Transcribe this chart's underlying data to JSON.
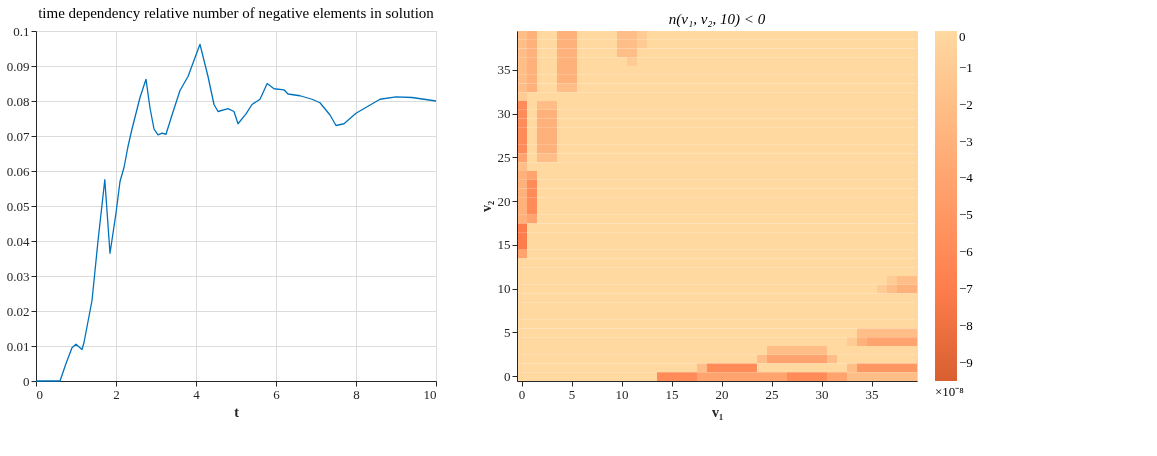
{
  "chart_data": [
    {
      "type": "line",
      "title": "time dependency relative number of negative elements in solution",
      "xlabel": "t",
      "x": [
        0,
        0.6,
        0.75,
        0.9,
        1.0,
        1.1,
        1.15,
        1.2,
        1.4,
        1.55,
        1.72,
        1.85,
        2.0,
        2.1,
        2.2,
        2.3,
        2.4,
        2.6,
        2.75,
        2.85,
        2.95,
        3.05,
        3.15,
        3.25,
        3.4,
        3.6,
        3.8,
        4.1,
        4.3,
        4.45,
        4.55,
        4.8,
        4.95,
        5.05,
        5.25,
        5.4,
        5.6,
        5.78,
        5.95,
        6.2,
        6.3,
        6.6,
        6.9,
        7.1,
        7.35,
        7.5,
        7.7,
        8.0,
        8.3,
        8.6,
        9.0,
        9.4,
        9.7,
        10
      ],
      "series": [
        {
          "color": "#0072bd",
          "values": [
            0,
            0,
            0.005,
            0.0095,
            0.0105,
            0.0095,
            0.009,
            0.011,
            0.023,
            0.04,
            0.0575,
            0.0365,
            0.048,
            0.057,
            0.061,
            0.067,
            0.072,
            0.081,
            0.0862,
            0.078,
            0.072,
            0.0703,
            0.0708,
            0.0705,
            0.076,
            0.083,
            0.087,
            0.0962,
            0.087,
            0.079,
            0.077,
            0.0778,
            0.077,
            0.0735,
            0.0763,
            0.079,
            0.0805,
            0.085,
            0.0835,
            0.0832,
            0.082,
            0.0815,
            0.0805,
            0.0795,
            0.076,
            0.073,
            0.0735,
            0.0765,
            0.0785,
            0.0805,
            0.0812,
            0.081,
            0.0805,
            0.08
          ]
        }
      ],
      "xlim": [
        0,
        10
      ],
      "xticks": [
        0,
        2,
        4,
        6,
        8,
        10
      ],
      "ylim": [
        0,
        0.1
      ],
      "yticks": [
        0,
        0.01,
        0.02,
        0.03,
        0.04,
        0.05,
        0.06,
        0.07,
        0.08,
        0.09,
        0.1
      ],
      "grid": true,
      "marker": "none",
      "line_style": "solid"
    },
    {
      "type": "heatmap",
      "title": "n(v₁, v₂, 10) < 0",
      "xlabel": "v₁",
      "ylabel": "v₂",
      "clabel": "×10⁻⁸",
      "categories": [
        "0",
        null,
        null,
        null,
        null,
        "5",
        null,
        null,
        null,
        null,
        "10",
        null,
        null,
        null,
        null,
        "15",
        null,
        null,
        null,
        null,
        "20",
        null,
        null,
        null,
        null,
        "25",
        null,
        null,
        null,
        null,
        "30",
        null,
        null,
        null,
        null,
        "35",
        null,
        null,
        null,
        null
      ],
      "y_categories": [
        null,
        null,
        null,
        null,
        "35",
        null,
        null,
        null,
        null,
        "30",
        null,
        null,
        null,
        null,
        "25",
        null,
        null,
        null,
        null,
        "20",
        null,
        null,
        null,
        null,
        "15",
        null,
        null,
        null,
        null,
        "10",
        null,
        null,
        null,
        null,
        "5",
        null,
        null,
        null,
        null,
        "0"
      ],
      "clim": [
        -9.5,
        0
      ],
      "cticks": [
        0,
        -1,
        -2,
        -3,
        -4,
        -5,
        -6,
        -7,
        -8,
        -9
      ],
      "cells": [
        [
          -2,
          -3,
          0,
          0,
          -3,
          -3,
          0,
          0,
          0,
          0,
          -2,
          -2,
          -1,
          0,
          0,
          0,
          0,
          0,
          0,
          0,
          0,
          0,
          0,
          0,
          0,
          0,
          0,
          0,
          0,
          0,
          0,
          0,
          0,
          0,
          0,
          0,
          0,
          0,
          0,
          0
        ],
        [
          -2,
          -3,
          0,
          0,
          -3,
          -3,
          0,
          0,
          0,
          0,
          -2,
          -2,
          -1,
          0,
          0,
          0,
          0,
          0,
          0,
          0,
          0,
          0,
          0,
          0,
          0,
          0,
          0,
          0,
          0,
          0,
          0,
          0,
          0,
          0,
          0,
          0,
          0,
          0,
          0,
          0
        ],
        [
          -2,
          -3,
          0,
          0,
          -3,
          -3,
          0,
          0,
          0,
          0,
          -2,
          -2,
          0,
          0,
          0,
          0,
          0,
          0,
          0,
          0,
          0,
          0,
          0,
          0,
          0,
          0,
          0,
          0,
          0,
          0,
          0,
          0,
          0,
          0,
          0,
          0,
          0,
          0,
          0,
          0
        ],
        [
          -2,
          -3,
          0,
          0,
          -3,
          -3,
          0,
          0,
          0,
          0,
          0,
          -1,
          0,
          0,
          0,
          0,
          0,
          0,
          0,
          0,
          0,
          0,
          0,
          0,
          0,
          0,
          0,
          0,
          0,
          0,
          0,
          0,
          0,
          0,
          0,
          0,
          0,
          0,
          0,
          0
        ],
        [
          -2,
          -3,
          0,
          0,
          -3,
          -3,
          0,
          0,
          0,
          0,
          0,
          0,
          0,
          0,
          0,
          0,
          0,
          0,
          0,
          0,
          0,
          0,
          0,
          0,
          0,
          0,
          0,
          0,
          0,
          0,
          0,
          0,
          0,
          0,
          0,
          0,
          0,
          0,
          0,
          0
        ],
        [
          -2,
          -3,
          0,
          0,
          -3,
          -3,
          0,
          0,
          0,
          0,
          0,
          0,
          0,
          0,
          0,
          0,
          0,
          0,
          0,
          0,
          0,
          0,
          0,
          0,
          0,
          0,
          0,
          0,
          0,
          0,
          0,
          0,
          0,
          0,
          0,
          0,
          0,
          0,
          0,
          0
        ],
        [
          -2,
          -3,
          0,
          0,
          -2,
          -2,
          0,
          0,
          0,
          0,
          0,
          0,
          0,
          0,
          0,
          0,
          0,
          0,
          0,
          0,
          0,
          0,
          0,
          0,
          0,
          0,
          0,
          0,
          0,
          0,
          0,
          0,
          0,
          0,
          0,
          0,
          0,
          0,
          0,
          0
        ],
        [
          -1,
          0,
          0,
          0,
          0,
          0,
          0,
          0,
          0,
          0,
          0,
          0,
          0,
          0,
          0,
          0,
          0,
          0,
          0,
          0,
          0,
          0,
          0,
          0,
          0,
          0,
          0,
          0,
          0,
          0,
          0,
          0,
          0,
          0,
          0,
          0,
          0,
          0,
          0,
          0
        ],
        [
          -6,
          0,
          -2,
          -2,
          0,
          0,
          0,
          0,
          0,
          0,
          0,
          0,
          0,
          0,
          0,
          0,
          0,
          0,
          0,
          0,
          0,
          0,
          0,
          0,
          0,
          0,
          0,
          0,
          0,
          0,
          0,
          0,
          0,
          0,
          0,
          0,
          0,
          0,
          0,
          0
        ],
        [
          -6,
          0,
          -3,
          -3,
          0,
          0,
          0,
          0,
          0,
          0,
          0,
          0,
          0,
          0,
          0,
          0,
          0,
          0,
          0,
          0,
          0,
          0,
          0,
          0,
          0,
          0,
          0,
          0,
          0,
          0,
          0,
          0,
          0,
          0,
          0,
          0,
          0,
          0,
          0,
          0
        ],
        [
          -6,
          0,
          -3,
          -3,
          0,
          0,
          0,
          0,
          0,
          0,
          0,
          0,
          0,
          0,
          0,
          0,
          0,
          0,
          0,
          0,
          0,
          0,
          0,
          0,
          0,
          0,
          0,
          0,
          0,
          0,
          0,
          0,
          0,
          0,
          0,
          0,
          0,
          0,
          0,
          0
        ],
        [
          -6,
          0,
          -3,
          -3,
          0,
          0,
          0,
          0,
          0,
          0,
          0,
          0,
          0,
          0,
          0,
          0,
          0,
          0,
          0,
          0,
          0,
          0,
          0,
          0,
          0,
          0,
          0,
          0,
          0,
          0,
          0,
          0,
          0,
          0,
          0,
          0,
          0,
          0,
          0,
          0
        ],
        [
          -6,
          0,
          -3,
          -3,
          0,
          0,
          0,
          0,
          0,
          0,
          0,
          0,
          0,
          0,
          0,
          0,
          0,
          0,
          0,
          0,
          0,
          0,
          0,
          0,
          0,
          0,
          0,
          0,
          0,
          0,
          0,
          0,
          0,
          0,
          0,
          0,
          0,
          0,
          0,
          0
        ],
        [
          -6,
          0,
          -3,
          -3,
          0,
          0,
          0,
          0,
          0,
          0,
          0,
          0,
          0,
          0,
          0,
          0,
          0,
          0,
          0,
          0,
          0,
          0,
          0,
          0,
          0,
          0,
          0,
          0,
          0,
          0,
          0,
          0,
          0,
          0,
          0,
          0,
          0,
          0,
          0,
          0
        ],
        [
          -4,
          0,
          -2,
          -2,
          0,
          0,
          0,
          0,
          0,
          0,
          0,
          0,
          0,
          0,
          0,
          0,
          0,
          0,
          0,
          0,
          0,
          0,
          0,
          0,
          0,
          0,
          0,
          0,
          0,
          0,
          0,
          0,
          0,
          0,
          0,
          0,
          0,
          0,
          0,
          0
        ],
        [
          -2,
          0,
          0,
          0,
          0,
          0,
          0,
          0,
          0,
          0,
          0,
          0,
          0,
          0,
          0,
          0,
          0,
          0,
          0,
          0,
          0,
          0,
          0,
          0,
          0,
          0,
          0,
          0,
          0,
          0,
          0,
          0,
          0,
          0,
          0,
          0,
          0,
          0,
          0,
          0
        ],
        [
          -3,
          -4,
          0,
          0,
          0,
          0,
          0,
          0,
          0,
          0,
          0,
          0,
          0,
          0,
          0,
          0,
          0,
          0,
          0,
          0,
          0,
          0,
          0,
          0,
          0,
          0,
          0,
          0,
          0,
          0,
          0,
          0,
          0,
          0,
          0,
          0,
          0,
          0,
          0,
          0
        ],
        [
          -3,
          -6,
          0,
          0,
          0,
          0,
          0,
          0,
          0,
          0,
          0,
          0,
          0,
          0,
          0,
          0,
          0,
          0,
          0,
          0,
          0,
          0,
          0,
          0,
          0,
          0,
          0,
          0,
          0,
          0,
          0,
          0,
          0,
          0,
          0,
          0,
          0,
          0,
          0,
          0
        ],
        [
          -3,
          -6,
          0,
          0,
          0,
          0,
          0,
          0,
          0,
          0,
          0,
          0,
          0,
          0,
          0,
          0,
          0,
          0,
          0,
          0,
          0,
          0,
          0,
          0,
          0,
          0,
          0,
          0,
          0,
          0,
          0,
          0,
          0,
          0,
          0,
          0,
          0,
          0,
          0,
          0
        ],
        [
          -3,
          -6,
          0,
          0,
          0,
          0,
          0,
          0,
          0,
          0,
          0,
          0,
          0,
          0,
          0,
          0,
          0,
          0,
          0,
          0,
          0,
          0,
          0,
          0,
          0,
          0,
          0,
          0,
          0,
          0,
          0,
          0,
          0,
          0,
          0,
          0,
          0,
          0,
          0,
          0
        ],
        [
          -3,
          -6,
          0,
          0,
          0,
          0,
          0,
          0,
          0,
          0,
          0,
          0,
          0,
          0,
          0,
          0,
          0,
          0,
          0,
          0,
          0,
          0,
          0,
          0,
          0,
          0,
          0,
          0,
          0,
          0,
          0,
          0,
          0,
          0,
          0,
          0,
          0,
          0,
          0,
          0
        ],
        [
          -3,
          -4,
          0,
          0,
          0,
          0,
          0,
          0,
          0,
          0,
          0,
          0,
          0,
          0,
          0,
          0,
          0,
          0,
          0,
          0,
          0,
          0,
          0,
          0,
          0,
          0,
          0,
          0,
          0,
          0,
          0,
          0,
          0,
          0,
          0,
          0,
          0,
          0,
          0,
          0
        ],
        [
          -7,
          0,
          0,
          0,
          0,
          0,
          0,
          0,
          0,
          0,
          0,
          0,
          0,
          0,
          0,
          0,
          0,
          0,
          0,
          0,
          0,
          0,
          0,
          0,
          0,
          0,
          0,
          0,
          0,
          0,
          0,
          0,
          0,
          0,
          0,
          0,
          0,
          0,
          0,
          0
        ],
        [
          -7,
          0,
          0,
          0,
          0,
          0,
          0,
          0,
          0,
          0,
          0,
          0,
          0,
          0,
          0,
          0,
          0,
          0,
          0,
          0,
          0,
          0,
          0,
          0,
          0,
          0,
          0,
          0,
          0,
          0,
          0,
          0,
          0,
          0,
          0,
          0,
          0,
          0,
          0,
          0
        ],
        [
          -7,
          0,
          0,
          0,
          0,
          0,
          0,
          0,
          0,
          0,
          0,
          0,
          0,
          0,
          0,
          0,
          0,
          0,
          0,
          0,
          0,
          0,
          0,
          0,
          0,
          0,
          0,
          0,
          0,
          0,
          0,
          0,
          0,
          0,
          0,
          0,
          0,
          0,
          0,
          0
        ],
        [
          -4,
          0,
          0,
          0,
          0,
          0,
          0,
          0,
          0,
          0,
          0,
          0,
          0,
          0,
          0,
          0,
          0,
          0,
          0,
          0,
          0,
          0,
          0,
          0,
          0,
          0,
          0,
          0,
          0,
          0,
          0,
          0,
          0,
          0,
          0,
          0,
          0,
          0,
          0,
          0
        ],
        [
          0,
          0,
          0,
          0,
          0,
          0,
          0,
          0,
          0,
          0,
          0,
          0,
          0,
          0,
          0,
          0,
          0,
          0,
          0,
          0,
          0,
          0,
          0,
          0,
          0,
          0,
          0,
          0,
          0,
          0,
          0,
          0,
          0,
          0,
          0,
          0,
          0,
          0,
          0,
          0
        ],
        [
          0,
          0,
          0,
          0,
          0,
          0,
          0,
          0,
          0,
          0,
          0,
          0,
          0,
          0,
          0,
          0,
          0,
          0,
          0,
          0,
          0,
          0,
          0,
          0,
          0,
          0,
          0,
          0,
          0,
          0,
          0,
          0,
          0,
          0,
          0,
          0,
          0,
          0,
          0,
          0
        ],
        [
          0,
          0,
          0,
          0,
          0,
          0,
          0,
          0,
          0,
          0,
          0,
          0,
          0,
          0,
          0,
          0,
          0,
          0,
          0,
          0,
          0,
          0,
          0,
          0,
          0,
          0,
          0,
          0,
          0,
          0,
          0,
          0,
          0,
          0,
          0,
          0,
          0,
          -1,
          -2,
          -2
        ],
        [
          0,
          0,
          0,
          0,
          0,
          0,
          0,
          0,
          0,
          0,
          0,
          0,
          0,
          0,
          0,
          0,
          0,
          0,
          0,
          0,
          0,
          0,
          0,
          0,
          0,
          0,
          0,
          0,
          0,
          0,
          0,
          0,
          0,
          0,
          0,
          0,
          -1,
          -2,
          -3,
          -3
        ],
        [
          0,
          0,
          0,
          0,
          0,
          0,
          0,
          0,
          0,
          0,
          0,
          0,
          0,
          0,
          0,
          0,
          0,
          0,
          0,
          0,
          0,
          0,
          0,
          0,
          0,
          0,
          0,
          0,
          0,
          0,
          0,
          0,
          0,
          0,
          0,
          0,
          0,
          0,
          0,
          0
        ],
        [
          0,
          0,
          0,
          0,
          0,
          0,
          0,
          0,
          0,
          0,
          0,
          0,
          0,
          0,
          0,
          0,
          0,
          0,
          0,
          0,
          0,
          0,
          0,
          0,
          0,
          0,
          0,
          0,
          0,
          0,
          0,
          0,
          0,
          0,
          0,
          0,
          0,
          0,
          0,
          0
        ],
        [
          0,
          0,
          0,
          0,
          0,
          0,
          0,
          0,
          0,
          0,
          0,
          0,
          0,
          0,
          0,
          0,
          0,
          0,
          0,
          0,
          0,
          0,
          0,
          0,
          0,
          0,
          0,
          0,
          0,
          0,
          0,
          0,
          0,
          0,
          0,
          0,
          0,
          0,
          0,
          0
        ],
        [
          0,
          0,
          0,
          0,
          0,
          0,
          0,
          0,
          0,
          0,
          0,
          0,
          0,
          0,
          0,
          0,
          0,
          0,
          0,
          0,
          0,
          0,
          0,
          0,
          0,
          0,
          0,
          0,
          0,
          0,
          0,
          0,
          0,
          0,
          0,
          0,
          0,
          0,
          0,
          0
        ],
        [
          0,
          0,
          0,
          0,
          0,
          0,
          0,
          0,
          0,
          0,
          0,
          0,
          0,
          0,
          0,
          0,
          0,
          0,
          0,
          0,
          0,
          0,
          0,
          0,
          0,
          0,
          0,
          0,
          0,
          0,
          0,
          0,
          0,
          0,
          -2,
          -2,
          -2,
          -2,
          -2,
          -2
        ],
        [
          0,
          0,
          0,
          0,
          0,
          0,
          0,
          0,
          0,
          0,
          0,
          0,
          0,
          0,
          0,
          0,
          0,
          0,
          0,
          0,
          0,
          0,
          0,
          0,
          0,
          0,
          0,
          0,
          0,
          0,
          0,
          0,
          0,
          -1,
          -3,
          -4,
          -4,
          -4,
          -4,
          -4
        ],
        [
          0,
          0,
          0,
          0,
          0,
          0,
          0,
          0,
          0,
          0,
          0,
          0,
          0,
          0,
          0,
          0,
          0,
          0,
          0,
          0,
          0,
          0,
          0,
          0,
          0,
          -2,
          -2,
          -2,
          -2,
          -2,
          -2,
          0,
          0,
          0,
          0,
          0,
          0,
          0,
          0,
          0
        ],
        [
          0,
          0,
          0,
          0,
          0,
          0,
          0,
          0,
          0,
          0,
          0,
          0,
          0,
          0,
          0,
          0,
          0,
          0,
          0,
          0,
          0,
          0,
          0,
          0,
          -2,
          -4,
          -4,
          -4,
          -4,
          -4,
          -4,
          -2,
          0,
          0,
          0,
          0,
          0,
          0,
          0,
          0
        ],
        [
          0,
          0,
          0,
          0,
          0,
          0,
          0,
          0,
          0,
          0,
          0,
          0,
          0,
          0,
          0,
          0,
          0,
          0,
          -2,
          -6,
          -6,
          -6,
          -6,
          -6,
          0,
          0,
          0,
          0,
          0,
          0,
          0,
          0,
          0,
          -2,
          -5,
          -5,
          -5,
          -5,
          -5,
          -5
        ],
        [
          0,
          0,
          0,
          0,
          0,
          0,
          0,
          0,
          0,
          0,
          0,
          0,
          0,
          0,
          -6,
          -6,
          -6,
          -6,
          -4,
          -4,
          -4,
          -4,
          -4,
          -4,
          -4,
          -4,
          -4,
          -6,
          -6,
          -6,
          -6,
          -4,
          -4,
          -2,
          -2,
          -2,
          -2,
          -2,
          -2,
          -2
        ]
      ]
    }
  ]
}
